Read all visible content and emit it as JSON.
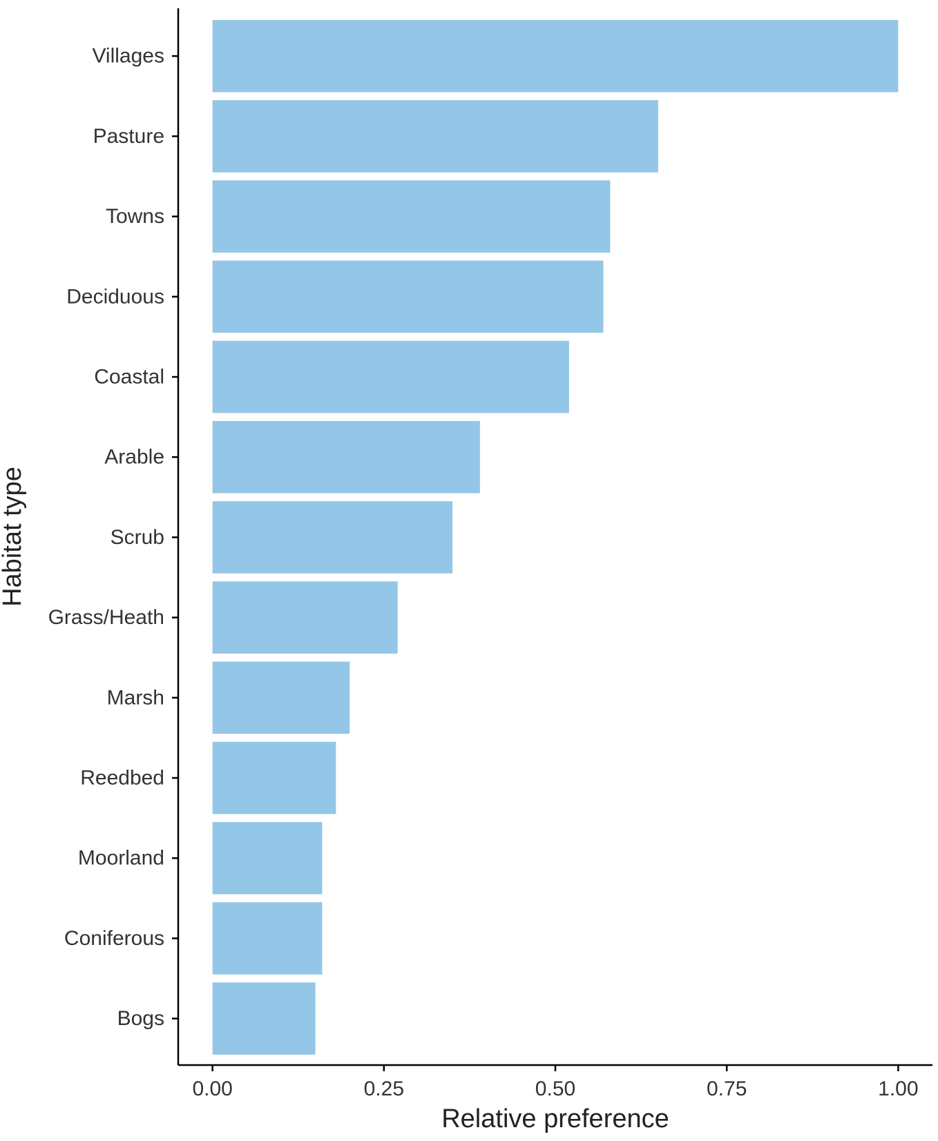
{
  "chart_data": {
    "type": "bar",
    "orientation": "horizontal",
    "title": "",
    "xlabel": "Relative preference",
    "ylabel": "Habitat type",
    "categories": [
      "Villages",
      "Pasture",
      "Towns",
      "Deciduous",
      "Coastal",
      "Arable",
      "Scrub",
      "Grass/Heath",
      "Marsh",
      "Reedbed",
      "Moorland",
      "Coniferous",
      "Bogs"
    ],
    "values": [
      1.0,
      0.65,
      0.58,
      0.57,
      0.52,
      0.39,
      0.35,
      0.27,
      0.2,
      0.18,
      0.16,
      0.16,
      0.15
    ],
    "xlim": [
      -0.05,
      1.05
    ],
    "xticks": [
      0,
      0.25,
      0.5,
      0.75,
      1.0
    ],
    "xtick_labels": [
      "0.00",
      "0.25",
      "0.50",
      "0.75",
      "1.00"
    ],
    "grid": false,
    "legend": "none",
    "bar_color": "#94c6e7",
    "axis_color": "#000000"
  }
}
